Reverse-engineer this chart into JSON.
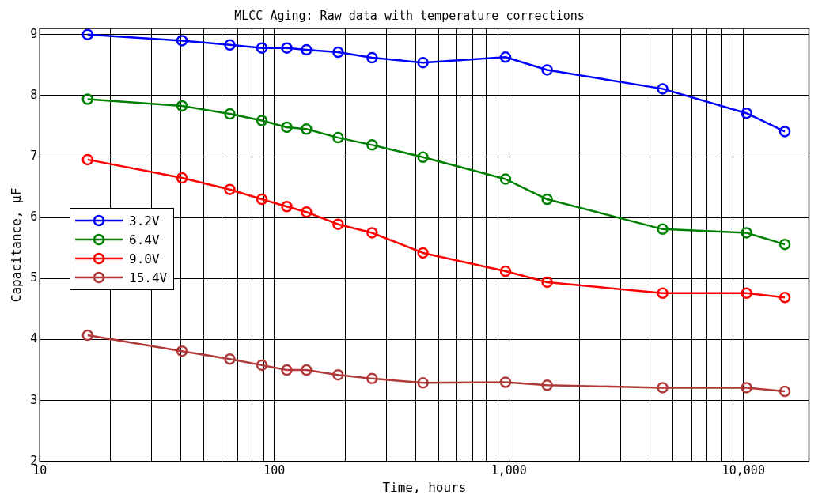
{
  "chart_data": {
    "type": "line",
    "title": "MLCC Aging: Raw data with temperature corrections",
    "xlabel": "Time, hours",
    "ylabel": "Capacitance, µF",
    "x": [
      16,
      40.4,
      64.6,
      88.5,
      113,
      137,
      187,
      261,
      430,
      967,
      1455,
      4518,
      10300,
      15000
    ],
    "series": [
      {
        "name": "3.2V",
        "color": "#0000ff",
        "values": [
          9.0,
          8.9,
          8.83,
          8.78,
          8.78,
          8.75,
          8.71,
          8.62,
          8.54,
          8.63,
          8.42,
          8.11,
          7.71,
          7.41
        ]
      },
      {
        "name": "6.4V",
        "color": "#008000",
        "values": [
          7.94,
          7.83,
          7.7,
          7.59,
          7.48,
          7.45,
          7.31,
          7.19,
          6.99,
          6.63,
          6.3,
          5.81,
          5.75,
          5.56
        ]
      },
      {
        "name": "9.0V",
        "color": "#ff0000",
        "values": [
          6.95,
          6.65,
          6.46,
          6.3,
          6.18,
          6.09,
          5.89,
          5.75,
          5.42,
          5.12,
          4.94,
          4.76,
          4.76,
          4.69
        ]
      },
      {
        "name": "15.4V",
        "color": "#b03a3a",
        "values": [
          4.07,
          3.81,
          3.68,
          3.58,
          3.5,
          3.5,
          3.42,
          3.36,
          3.29,
          3.3,
          3.25,
          3.21,
          3.21,
          3.15
        ]
      }
    ],
    "log": "x",
    "xlim": [
      10,
      19000
    ],
    "xticks": [
      {
        "value": 10,
        "label": "10"
      },
      {
        "value": 20,
        "label": null
      },
      {
        "value": 30,
        "label": null
      },
      {
        "value": 40,
        "label": null
      },
      {
        "value": 50,
        "label": null
      },
      {
        "value": 60,
        "label": null
      },
      {
        "value": 70,
        "label": null
      },
      {
        "value": 80,
        "label": null
      },
      {
        "value": 90,
        "label": null
      },
      {
        "value": 100,
        "label": "100"
      },
      {
        "value": 200,
        "label": null
      },
      {
        "value": 300,
        "label": null
      },
      {
        "value": 400,
        "label": null
      },
      {
        "value": 500,
        "label": null
      },
      {
        "value": 600,
        "label": null
      },
      {
        "value": 700,
        "label": null
      },
      {
        "value": 800,
        "label": null
      },
      {
        "value": 900,
        "label": null
      },
      {
        "value": 1000,
        "label": "1,000"
      },
      {
        "value": 2000,
        "label": null
      },
      {
        "value": 3000,
        "label": null
      },
      {
        "value": 4000,
        "label": null
      },
      {
        "value": 5000,
        "label": null
      },
      {
        "value": 6000,
        "label": null
      },
      {
        "value": 7000,
        "label": null
      },
      {
        "value": 8000,
        "label": null
      },
      {
        "value": 9000,
        "label": null
      },
      {
        "value": 10000,
        "label": "10,000"
      }
    ],
    "ylim": [
      2,
      9.1
    ],
    "yticks": [
      2,
      3,
      4,
      5,
      6,
      7,
      8,
      9
    ],
    "grid": true,
    "legend": "left",
    "marker": "circle",
    "line_style": "solid"
  }
}
